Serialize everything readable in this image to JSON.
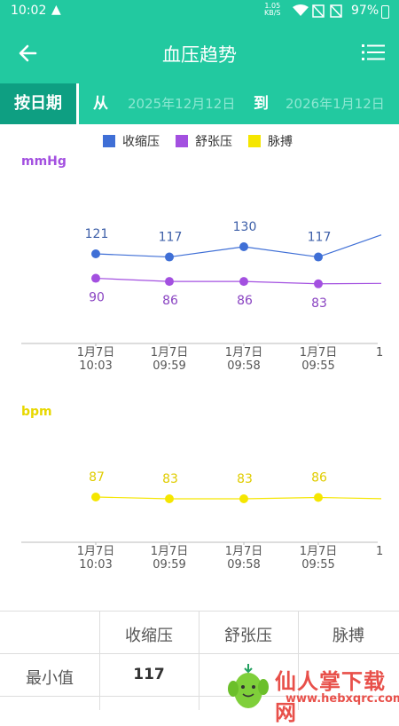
{
  "status": {
    "time": "10:02",
    "net_speed_top": "1.05",
    "net_speed_unit": "KB/S",
    "battery": "97%"
  },
  "appbar": {
    "title": "血压趋势"
  },
  "datebar": {
    "by_date": "按日期",
    "from": "从",
    "start_date": "2025年12月12日",
    "to": "到",
    "end_date": "2026年1月12日"
  },
  "legend": [
    {
      "name": "收缩压",
      "color": "#3f6fd6"
    },
    {
      "name": "舒张压",
      "color": "#a350e0"
    },
    {
      "name": "脉搏",
      "color": "#f5e600"
    }
  ],
  "chart_data": [
    {
      "type": "line",
      "ylabel": "mmHg",
      "categories": [
        "1月7日\n10:03",
        "1月7日\n09:59",
        "1月7日\n09:58",
        "1月7日\n09:55"
      ],
      "series": [
        {
          "name": "收缩压",
          "color": "#3f6fd6",
          "values": [
            121,
            117,
            130,
            117
          ]
        },
        {
          "name": "舒张压",
          "color": "#a350e0",
          "values": [
            90,
            86,
            86,
            83
          ]
        }
      ]
    },
    {
      "type": "line",
      "ylabel": "bpm",
      "categories": [
        "1月7日\n10:03",
        "1月7日\n09:59",
        "1月7日\n09:58",
        "1月7日\n09:55"
      ],
      "series": [
        {
          "name": "脉搏",
          "color": "#f5e600",
          "values": [
            87,
            83,
            83,
            86
          ]
        }
      ]
    }
  ],
  "table": {
    "headers": [
      "收缩压",
      "舒张压",
      "脉搏"
    ],
    "rows": [
      {
        "label": "最小值",
        "values": [
          "117",
          "",
          ""
        ]
      }
    ]
  },
  "watermark": {
    "text": "仙人掌下载网",
    "url": "www.hebxqrc.com"
  }
}
